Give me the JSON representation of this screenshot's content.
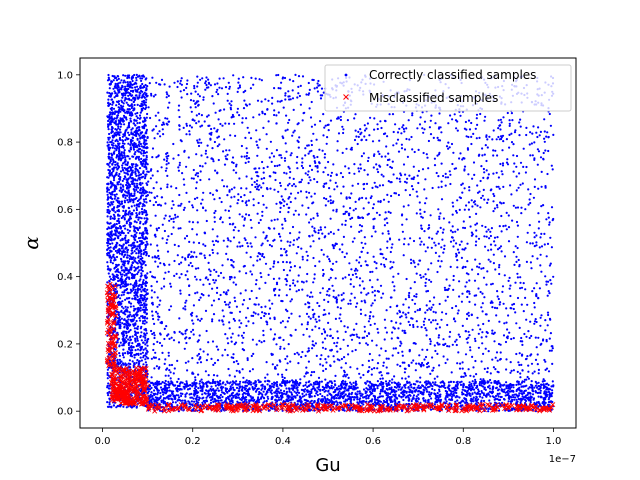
{
  "chart_data": {
    "type": "scatter",
    "title": "",
    "xlabel": "Gu",
    "ylabel": "α",
    "x_offset_text": "1e−7",
    "xlim": [
      -0.05,
      1.05
    ],
    "ylim": [
      -0.05,
      1.05
    ],
    "x_ticks": [
      0.0,
      0.2,
      0.4,
      0.6,
      0.8,
      1.0
    ],
    "x_tick_labels": [
      "0.0",
      "0.2",
      "0.4",
      "0.6",
      "0.8",
      "1.0"
    ],
    "y_ticks": [
      0.0,
      0.2,
      0.4,
      0.6,
      0.8,
      1.0
    ],
    "y_tick_labels": [
      "0.0",
      "0.2",
      "0.4",
      "0.6",
      "0.8",
      "1.0"
    ],
    "grid": false,
    "legend_position": "upper-right",
    "series": [
      {
        "name": "Correctly classified samples",
        "color": "#0000ff",
        "marker": "dot",
        "regions": [
          {
            "x": [
              0.01,
              0.1
            ],
            "y": [
              0.01,
              1.0
            ],
            "count": 2600
          },
          {
            "x": [
              0.1,
              1.0
            ],
            "y": [
              0.0,
              0.09
            ],
            "count": 2600
          },
          {
            "x": [
              0.1,
              1.0
            ],
            "y": [
              0.09,
              1.0
            ],
            "count": 3200
          }
        ],
        "sample_points": [
          [
            0.05,
            0.9
          ],
          [
            0.3,
            0.5
          ],
          [
            0.7,
            0.05
          ],
          [
            0.9,
            0.8
          ]
        ]
      },
      {
        "name": "Misclassified samples",
        "color": "#ff0000",
        "marker": "x",
        "regions": [
          {
            "x": [
              0.01,
              0.03
            ],
            "y": [
              0.12,
              0.38
            ],
            "count": 90
          },
          {
            "x": [
              0.02,
              0.1
            ],
            "y": [
              0.02,
              0.13
            ],
            "count": 260
          },
          {
            "x": [
              0.1,
              1.0
            ],
            "y": [
              0.0,
              0.02
            ],
            "count": 320
          }
        ],
        "sample_points": [
          [
            0.02,
            0.25
          ],
          [
            0.05,
            0.07
          ],
          [
            0.5,
            0.01
          ],
          [
            0.9,
            0.005
          ]
        ]
      }
    ]
  }
}
